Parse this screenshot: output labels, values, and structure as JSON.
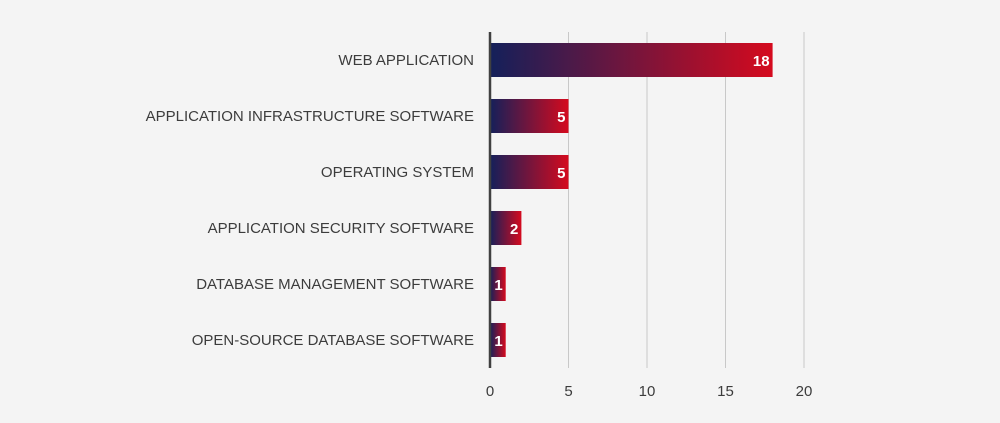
{
  "chart_data": {
    "type": "bar",
    "orientation": "horizontal",
    "categories": [
      "WEB APPLICATION",
      "APPLICATION INFRASTRUCTURE SOFTWARE",
      "OPERATING SYSTEM",
      "APPLICATION SECURITY SOFTWARE",
      "DATABASE MANAGEMENT SOFTWARE",
      "OPEN-SOURCE DATABASE SOFTWARE"
    ],
    "values": [
      18,
      5,
      5,
      2,
      1,
      1
    ],
    "data_labels": [
      "18",
      "5",
      "5",
      "2",
      "1",
      "1"
    ],
    "xlim": [
      0,
      20
    ],
    "xticks": [
      "0",
      "5",
      "10",
      "15",
      "20"
    ],
    "grid": "vertical",
    "legend": "none",
    "colors": {
      "gradient_start": "#14205a",
      "gradient_end": "#d50a1e",
      "grid": "#c8c8c8",
      "axis": "#404040",
      "background": "#f4f4f4"
    }
  }
}
